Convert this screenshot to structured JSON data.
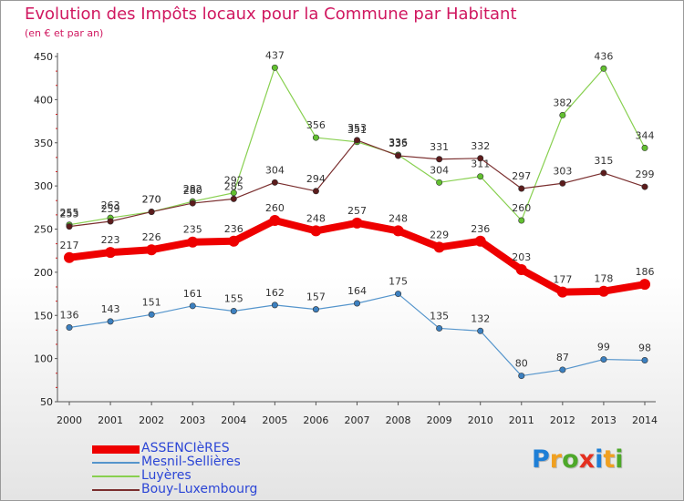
{
  "page": {
    "title": "Evolution des Impôts locaux pour la Commune par Habitant",
    "subtitle": "(en € et par an)"
  },
  "logo": {
    "text": "Proxiti",
    "letters": [
      {
        "ch": "P",
        "color": "#1e7fd6"
      },
      {
        "ch": "r",
        "color": "#f0a020"
      },
      {
        "ch": "o",
        "color": "#4ea82a"
      },
      {
        "ch": "x",
        "color": "#e43020"
      },
      {
        "ch": "i",
        "color": "#1e7fd6"
      },
      {
        "ch": "t",
        "color": "#f0a020"
      },
      {
        "ch": "i",
        "color": "#4ea82a"
      }
    ]
  },
  "chart_data": {
    "type": "line",
    "title": "Evolution des Impôts locaux pour la Commune par Habitant",
    "subtitle": "(en € et par an)",
    "x": [
      "2000",
      "2001",
      "2002",
      "2003",
      "2004",
      "2005",
      "2006",
      "2007",
      "2008",
      "2009",
      "2010",
      "2011",
      "2012",
      "2013",
      "2014"
    ],
    "yticks": [
      50,
      100,
      150,
      200,
      250,
      300,
      350,
      400,
      450
    ],
    "ylim": [
      50,
      450
    ],
    "grid": false,
    "legend_position": "bottom-left",
    "series": [
      {
        "name": "Luyères",
        "color": "#88d050",
        "marker": "#62c030",
        "width": 1.2,
        "values": [
          255,
          263,
          270,
          282,
          292,
          437,
          356,
          351,
          336,
          304,
          311,
          260,
          382,
          436,
          344
        ]
      },
      {
        "name": "Bouy-Luxembourg",
        "color": "#7a2e2e",
        "marker": "#5c1c1c",
        "width": 1.2,
        "values": [
          253,
          259,
          270,
          280,
          285,
          304,
          294,
          353,
          335,
          331,
          332,
          297,
          303,
          315,
          299
        ]
      },
      {
        "name": "Mesnil-Sellières",
        "color": "#5595cc",
        "marker": "#3c80c0",
        "width": 1.2,
        "values": [
          136,
          143,
          151,
          161,
          155,
          162,
          157,
          164,
          175,
          135,
          132,
          80,
          87,
          99,
          98
        ]
      },
      {
        "name": "ASSENCIèRES",
        "color": "#ee0000",
        "marker": "#ee0000",
        "width": 8,
        "values": [
          217,
          223,
          226,
          235,
          236,
          260,
          248,
          257,
          248,
          229,
          236,
          203,
          177,
          178,
          186
        ]
      }
    ]
  }
}
